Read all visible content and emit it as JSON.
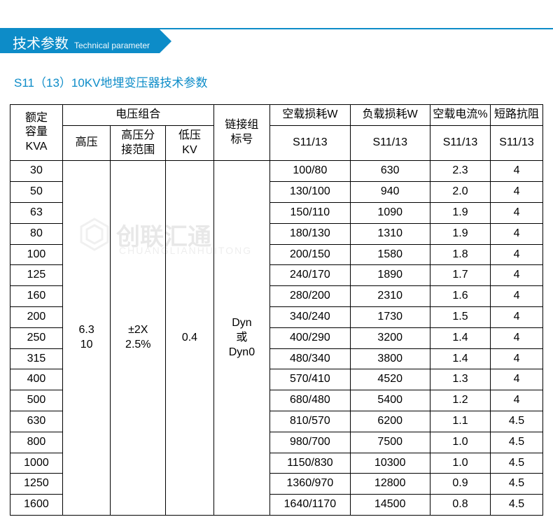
{
  "header": {
    "title_cn": "技术参数",
    "title_en": "Technical parameter"
  },
  "subtitle": "S11（13）10KV地埋变压器技术参数",
  "table": {
    "colwidths_pct": [
      9.3,
      8.5,
      9.8,
      8.5,
      10.0,
      14.2,
      14.2,
      10.7,
      9.3
    ],
    "header_row1": {
      "c0": "额定\n容量\nKVA",
      "c1_span": "电压组合",
      "c4": "链接组\n标号",
      "c5": "空载损耗W",
      "c6": "负载损耗W",
      "c7": "空载电流%",
      "c8": "短路抗阻"
    },
    "header_row2": {
      "c1": "高压",
      "c2": "高压分\n接范围",
      "c3": "低压\nKV",
      "c5": "S11/13",
      "c6": "S11/13",
      "c7": "S11/13",
      "c8": "S11/13"
    },
    "merged_cells": {
      "hv": "6.3\n10",
      "tap": "±2X\n2.5%",
      "lv": "0.4",
      "conn": "Dyn\n或\nDyn0"
    },
    "rows": [
      {
        "kva": "30",
        "noload": "100/80",
        "load": "630",
        "curr": "2.3",
        "imp": "4"
      },
      {
        "kva": "50",
        "noload": "130/100",
        "load": "940",
        "curr": "2.0",
        "imp": "4"
      },
      {
        "kva": "63",
        "noload": "150/110",
        "load": "1090",
        "curr": "1.9",
        "imp": "4"
      },
      {
        "kva": "80",
        "noload": "180/130",
        "load": "1310",
        "curr": "1.9",
        "imp": "4"
      },
      {
        "kva": "100",
        "noload": "200/150",
        "load": "1580",
        "curr": "1.8",
        "imp": "4"
      },
      {
        "kva": "125",
        "noload": "240/170",
        "load": "1890",
        "curr": "1.7",
        "imp": "4"
      },
      {
        "kva": "160",
        "noload": "280/200",
        "load": "2310",
        "curr": "1.6",
        "imp": "4"
      },
      {
        "kva": "200",
        "noload": "340/240",
        "load": "1730",
        "curr": "1.5",
        "imp": "4"
      },
      {
        "kva": "250",
        "noload": "400/290",
        "load": "3200",
        "curr": "1.4",
        "imp": "4"
      },
      {
        "kva": "315",
        "noload": "480/340",
        "load": "3800",
        "curr": "1.4",
        "imp": "4"
      },
      {
        "kva": "400",
        "noload": "570/410",
        "load": "4520",
        "curr": "1.3",
        "imp": "4"
      },
      {
        "kva": "500",
        "noload": "680/480",
        "load": "5400",
        "curr": "1.2",
        "imp": "4"
      },
      {
        "kva": "630",
        "noload": "810/570",
        "load": "6200",
        "curr": "1.1",
        "imp": "4.5"
      },
      {
        "kva": "800",
        "noload": "980/700",
        "load": "7500",
        "curr": "1.0",
        "imp": "4.5"
      },
      {
        "kva": "1000",
        "noload": "1150/830",
        "load": "10300",
        "curr": "1.0",
        "imp": "4.5"
      },
      {
        "kva": "1250",
        "noload": "1360/970",
        "load": "12800",
        "curr": "0.9",
        "imp": "4.5"
      },
      {
        "kva": "1600",
        "noload": "1640/1170",
        "load": "14500",
        "curr": "0.8",
        "imp": "4.5"
      }
    ]
  },
  "watermark": {
    "main": "创联汇通",
    "sub": "CHUANGLIANHUITONG"
  },
  "colors": {
    "accent": "#0d8cc8",
    "border": "#000000",
    "bg": "#ffffff"
  }
}
